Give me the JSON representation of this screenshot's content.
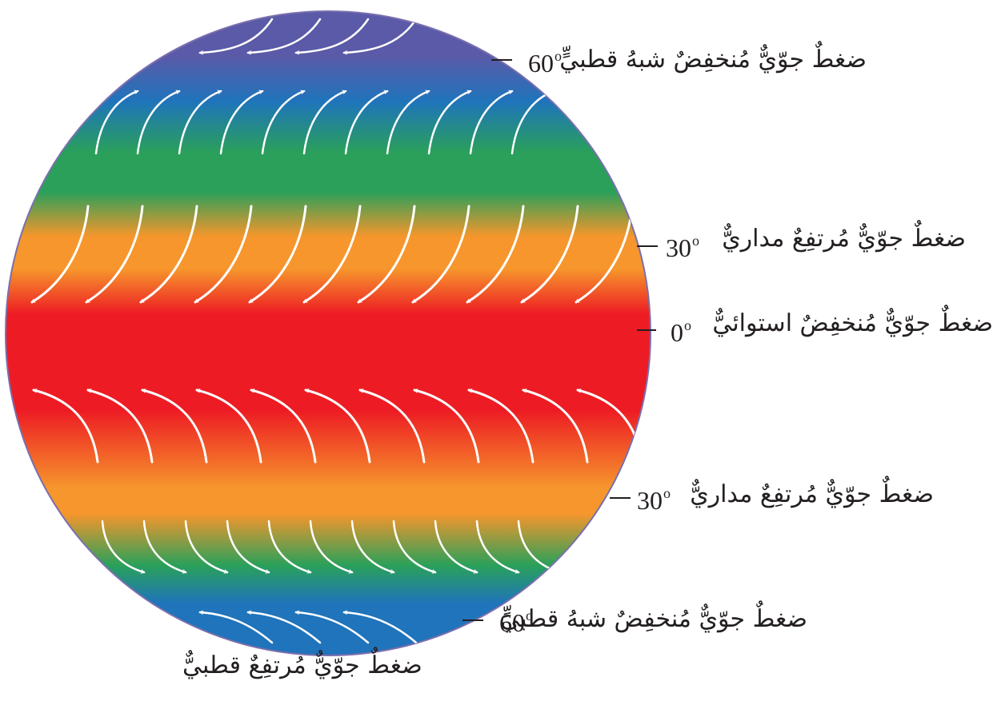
{
  "diagram": {
    "belts": [
      {
        "id": "north-60",
        "latitude": "60",
        "label": "ضغطٌ جوّيٌّ مُنخفِضٌ شبهُ قطبيٍّ"
      },
      {
        "id": "north-30",
        "latitude": "30",
        "label": "ضغطٌ جوّيٌّ مُرتفِعٌ مداريٌّ"
      },
      {
        "id": "equator",
        "latitude": "0",
        "label": "ضغطٌ جوّيٌّ مُنخفِضٌ استوائيٌّ"
      },
      {
        "id": "south-30",
        "latitude": "30",
        "label": "ضغطٌ جوّيٌّ مُرتفِعٌ مداريٌّ"
      },
      {
        "id": "south-60",
        "latitude": "60",
        "label": "ضغطٌ جوّيٌّ مُنخفِضٌ شبهُ قطبيٍّ"
      }
    ],
    "pole_label": "ضغطٌ جوّيٌّ مُرتفِعٌ قطبيٌّ",
    "degree_symbol": "o",
    "colors": {
      "polar": "#5a5aa8",
      "subpolar": "#1f74bb",
      "temperate": "#2aa05a",
      "subtropical": "#f6962c",
      "equatorial": "#ed1c24",
      "arrows": "#ffffff",
      "text": "#231f20"
    }
  }
}
